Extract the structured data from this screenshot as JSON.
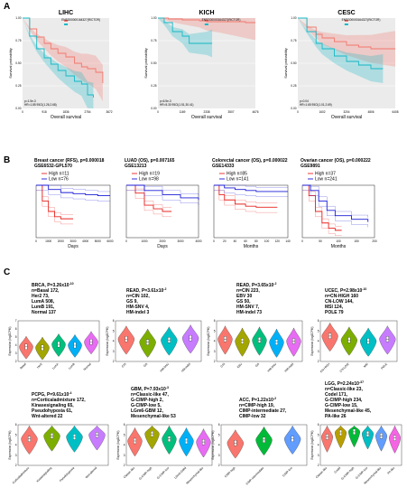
{
  "panels": [
    "A",
    "B",
    "C"
  ],
  "panel_a": [
    {
      "title": "LIHC",
      "xticks": [
        "0",
        "918",
        "1836",
        "2754",
        "3672"
      ],
      "xlabel": "Overall survival",
      "ylabel": "Survival probability",
      "legend_header": "ENSG00000164327(RICTOR)",
      "stats": [
        "p=1.5e-3",
        "HR=1.85 95CI(1.26,2.68)"
      ],
      "yticks": [
        "0.00",
        "0.25",
        "0.50",
        "0.75",
        "1.00"
      ]
    },
    {
      "title": "KICH",
      "xticks": [
        "0",
        "1169",
        "2338",
        "3507",
        "4676"
      ],
      "xlabel": "Overall survival",
      "ylabel": "Survival probability",
      "legend_header": "ENSG00000164327(RICTOR)",
      "stats": [
        "p=6.5e-3",
        "HR=5.30 95CI(1.51,30.41)"
      ],
      "yticks": [
        "0.00",
        "0.25",
        "0.50",
        "0.75",
        "1.00"
      ]
    },
    {
      "title": "CESC",
      "xticks": [
        "0",
        "1602",
        "3204",
        "4806",
        "6408"
      ],
      "xlabel": "Overall survival",
      "ylabel": "Survival probability",
      "legend_header": "ENSG00000164327(RICTOR)",
      "stats": [
        "p=0.04",
        "HR=1.65 95CI(1.01,2.69)"
      ],
      "yticks": [
        "0.00",
        "0.25",
        "0.50",
        "0.75",
        "1.00"
      ]
    }
  ],
  "panel_b": [
    {
      "title": "Breast cancer (RFS), p=0.000018",
      "dataset": "GSE6532-GPL570",
      "high": "High n=11",
      "low": "Low  n=76",
      "xlabel": "Days",
      "xticks": [
        "0",
        "1000",
        "2000",
        "3000",
        "4000",
        "5000",
        "6000"
      ]
    },
    {
      "title": "LUAD (OS), p=0.007165",
      "dataset": "GSE13213",
      "high": "High n=19",
      "low": "Low  n=98",
      "xlabel": "Days",
      "xticks": [
        "0",
        "1000",
        "2000",
        "3000",
        "4000"
      ]
    },
    {
      "title": "Colorectal cancer (OS), p=0.000022",
      "dataset": "GSE14333",
      "high": "High n=85",
      "low": "Low  n=141",
      "xlabel": "Months",
      "xticks": [
        "0",
        "20",
        "40",
        "60",
        "80",
        "100",
        "120",
        "140"
      ]
    },
    {
      "title": "Ovarian cancer (OS), p=0.000222",
      "dataset": "GSE9891",
      "high": "High n=37",
      "low": "Low  n=241",
      "xlabel": "Months",
      "xticks": [
        "0",
        "50",
        "100",
        "150",
        "200"
      ]
    }
  ],
  "panel_c": [
    {
      "title": "BRCA, P=3.26x10",
      "sup": "-10",
      "lines": [
        "n=Basal 172,",
        "Her2 73,",
        "LumA 508,",
        "LumB 191,",
        "Normal 137"
      ],
      "categories": [
        "Basal",
        "Her2",
        "LumA",
        "LumB",
        "Normal"
      ],
      "ylabel": "Expression (log2CPM)",
      "yticks": [
        "2",
        "3",
        "4",
        "5",
        "6",
        "7"
      ]
    },
    {
      "title": "READ, P=3.61x10",
      "sup": "-2",
      "lines": [
        "n=CIN 102,",
        "GS 9,",
        "HM-SNV 4,",
        "HM-indel 3"
      ],
      "categories": [
        "CIN",
        "GS",
        "HM-SNV",
        "HM-indel"
      ],
      "ylabel": "Expression (log2CPM)",
      "yticks": [
        "2",
        "3",
        "4",
        "5",
        "6"
      ]
    },
    {
      "title": "READ, P=3.65x10",
      "sup": "-2",
      "lines": [
        "n=CIN 223,",
        "EBV 30",
        "GS 50,",
        "HM-SNV 7,",
        "HM-indel 73"
      ],
      "categories": [
        "CIN",
        "EBV",
        "GS",
        "HM-SNV",
        "HM-indel"
      ],
      "ylabel": "Expression (log2CPM)",
      "yticks": [
        "2",
        "3",
        "4",
        "5",
        "6"
      ]
    },
    {
      "title": "UCEC, P=2.98x10",
      "sup": "-10",
      "lines": [
        "n=CN-HIGH 160",
        "CN-LOW 144,",
        "MSI 124,",
        "POLE 79"
      ],
      "categories": [
        "CN-HIGH",
        "CN-LOW",
        "MSI",
        "POLE"
      ],
      "ylabel": "Expression (log2CPM)",
      "yticks": [
        "2",
        "3",
        "4",
        "5",
        "6"
      ]
    },
    {
      "title": "PCPG, P=9.61x10",
      "sup": "-4",
      "lines": [
        "n=Corticaladmixture 172,",
        "Kinasesignaling 65,",
        "Pseudohypoxia 61,",
        "Wnt-altered 22"
      ],
      "categories": [
        "Corticaladmixture",
        "Kinasesignaling",
        "Pseudohypoxia",
        "Wnt-altered"
      ],
      "ylabel": "Expression (log2CPM)",
      "yticks": [
        "2",
        "3",
        "4",
        "5",
        "6"
      ]
    },
    {
      "title": "GBM, P=7.93x10",
      "sup": "-3",
      "lines": [
        "n=Classic-like 47,",
        "G-CIMP-high 2,",
        "G-CIMP-low 5,",
        "LGm6-GBM 12,",
        "Mesenchymal-like 53"
      ],
      "categories": [
        "Classic-like",
        "G-CIMP-high",
        "G-CIMP-low",
        "LGm6-GBM",
        "Mesenchymal-like"
      ],
      "ylabel": "Expression (log2CPM)",
      "yticks": [
        "2",
        "3",
        "4",
        "5",
        "6"
      ]
    },
    {
      "title": "ACC, P=1.22x10",
      "sup": "-2",
      "lines": [
        "n=CIMP-high 19,",
        "CIMP-intermediate 27,",
        "CIMP-low 32"
      ],
      "categories": [
        "CIMP-high",
        "CIMP-intermediate",
        "CIMP-low"
      ],
      "ylabel": "Expression (log2CPM)",
      "yticks": [
        "2",
        "3",
        "4",
        "5",
        "6"
      ]
    },
    {
      "title": "LGG, P=2.24x10",
      "sup": "-37",
      "lines": [
        "n=Classic-like 23,",
        "Codel 171,",
        "G-CIMP-high 234,",
        "G-CIMP-low 15,",
        "Mesenchymal-like 45,",
        "PA-like 26"
      ],
      "categories": [
        "Classic-like",
        "Codel",
        "G-CIMP-high",
        "G-CIMP-low",
        "Mesenchymal-like",
        "PA-like"
      ],
      "ylabel": "Expression (log2CPM)",
      "yticks": [
        "2",
        "3",
        "4",
        "5",
        "6"
      ]
    }
  ],
  "chart_data": [
    {
      "type": "line",
      "title": "LIHC",
      "xlabel": "Overall survival",
      "ylabel": "Survival probability",
      "xlim": [
        0,
        3672
      ],
      "ylim": [
        0,
        1
      ],
      "series": [
        {
          "color": "#f4776d",
          "x": [
            0,
            300,
            600,
            918,
            1200,
            1500,
            1836,
            2200,
            2500,
            2754,
            3100,
            3400
          ],
          "y": [
            1.0,
            0.88,
            0.79,
            0.72,
            0.66,
            0.61,
            0.57,
            0.5,
            0.46,
            0.44,
            0.4,
            0.28
          ]
        },
        {
          "color": "#16b8c6",
          "x": [
            0,
            300,
            600,
            918,
            1200,
            1500,
            1836,
            2200,
            2500,
            2754,
            3000
          ],
          "y": [
            1.0,
            0.8,
            0.66,
            0.56,
            0.49,
            0.42,
            0.36,
            0.3,
            0.27,
            0.15,
            0.12
          ]
        }
      ]
    },
    {
      "type": "line",
      "title": "KICH",
      "xlabel": "Overall survival",
      "ylabel": "Survival probability",
      "xlim": [
        0,
        4676
      ],
      "ylim": [
        0,
        1
      ],
      "series": [
        {
          "color": "#f4776d",
          "x": [
            0,
            500,
            1169,
            2000,
            2338,
            3000,
            3507,
            4200,
            4676
          ],
          "y": [
            1.0,
            0.99,
            0.98,
            0.97,
            0.96,
            0.96,
            0.96,
            0.95,
            0.95
          ]
        },
        {
          "color": "#16b8c6",
          "x": [
            0,
            300,
            700,
            1169,
            1500,
            2338,
            2600
          ],
          "y": [
            1.0,
            0.95,
            0.85,
            0.8,
            0.72,
            0.72,
            0.72
          ]
        }
      ]
    },
    {
      "type": "line",
      "title": "CESC",
      "xlabel": "Overall survival",
      "ylabel": "Survival probability",
      "xlim": [
        0,
        6408
      ],
      "ylim": [
        0,
        1
      ],
      "series": [
        {
          "color": "#f4776d",
          "x": [
            0,
            600,
            1200,
            1602,
            2400,
            3204,
            4000,
            4806,
            5600,
            6408
          ],
          "y": [
            1.0,
            0.9,
            0.82,
            0.78,
            0.74,
            0.7,
            0.68,
            0.66,
            0.66,
            0.66
          ]
        },
        {
          "color": "#16b8c6",
          "x": [
            0,
            600,
            1200,
            1602,
            2400,
            3204,
            4000,
            4806,
            5600
          ],
          "y": [
            1.0,
            0.85,
            0.72,
            0.66,
            0.58,
            0.52,
            0.48,
            0.44,
            0.44
          ]
        }
      ]
    },
    {
      "type": "line",
      "title": "Breast cancer (RFS), p=0.000018",
      "xlabel": "Days",
      "xlim": [
        0,
        6000
      ],
      "ylim": [
        0,
        1
      ],
      "series": [
        {
          "name": "High n=11",
          "color": "#e8231f",
          "x": [
            0,
            500,
            1000,
            1500,
            2000,
            3000
          ],
          "y": [
            1.0,
            0.7,
            0.5,
            0.4,
            0.36,
            0.36
          ]
        },
        {
          "name": "Low  n=76",
          "color": "#1b1bd8",
          "x": [
            0,
            1000,
            2000,
            3000,
            4000,
            5000,
            6000
          ],
          "y": [
            1.0,
            0.92,
            0.86,
            0.84,
            0.82,
            0.8,
            0.8
          ]
        }
      ]
    },
    {
      "type": "line",
      "title": "LUAD (OS), p=0.007165",
      "xlabel": "Days",
      "xlim": [
        0,
        4000
      ],
      "ylim": [
        0,
        1
      ],
      "series": [
        {
          "name": "High n=19",
          "color": "#e8231f",
          "x": [
            0,
            500,
            1000,
            1500,
            2000,
            2500
          ],
          "y": [
            1.0,
            0.85,
            0.62,
            0.55,
            0.5,
            0.5
          ]
        },
        {
          "name": "Low  n=98",
          "color": "#1b1bd8",
          "x": [
            0,
            1000,
            2000,
            3000,
            4000
          ],
          "y": [
            1.0,
            0.9,
            0.82,
            0.76,
            0.72
          ]
        }
      ]
    },
    {
      "type": "line",
      "title": "Colorectal cancer (OS), p=0.000022",
      "xlabel": "Months",
      "xlim": [
        0,
        140
      ],
      "ylim": [
        0,
        1
      ],
      "series": [
        {
          "name": "High n=85",
          "color": "#e8231f",
          "x": [
            0,
            10,
            20,
            40,
            60,
            80,
            100,
            120
          ],
          "y": [
            1.0,
            0.82,
            0.72,
            0.64,
            0.6,
            0.58,
            0.58,
            0.58
          ]
        },
        {
          "name": "Low  n=141",
          "color": "#1b1bd8",
          "x": [
            0,
            20,
            40,
            60,
            80,
            100,
            120,
            140
          ],
          "y": [
            1.0,
            0.95,
            0.92,
            0.9,
            0.88,
            0.88,
            0.88,
            0.88
          ]
        }
      ]
    },
    {
      "type": "line",
      "title": "Ovarian cancer (OS), p=0.000222",
      "xlabel": "Months",
      "xlim": [
        0,
        220
      ],
      "ylim": [
        0,
        1
      ],
      "series": [
        {
          "name": "High n=37",
          "color": "#e8231f",
          "x": [
            0,
            20,
            40,
            60,
            80,
            100,
            120
          ],
          "y": [
            1.0,
            0.8,
            0.5,
            0.28,
            0.18,
            0.14,
            0.14
          ]
        },
        {
          "name": "Low  n=241",
          "color": "#1b1bd8",
          "x": [
            0,
            25,
            50,
            75,
            100,
            150,
            200
          ],
          "y": [
            1.0,
            0.9,
            0.7,
            0.52,
            0.42,
            0.35,
            0.3
          ]
        }
      ]
    },
    {
      "type": "violin",
      "title": "BRCA",
      "categories": [
        "Basal",
        "Her2",
        "LumA",
        "LumB",
        "Normal"
      ],
      "medians": [
        3.8,
        3.7,
        4.1,
        4.0,
        4.4
      ],
      "colors": [
        "#f8766d",
        "#a3a500",
        "#00bf7d",
        "#00b0f6",
        "#e76bf3"
      ],
      "ylim": [
        2,
        7
      ]
    },
    {
      "type": "violin",
      "title": "READ",
      "categories": [
        "CIN",
        "GS",
        "HM-SNV",
        "HM-indel"
      ],
      "medians": [
        4.2,
        3.9,
        4.1,
        4.3
      ],
      "colors": [
        "#f8766d",
        "#7cae00",
        "#00bfc4",
        "#c77cff"
      ],
      "ylim": [
        2,
        6
      ]
    },
    {
      "type": "violin",
      "title": "READ",
      "categories": [
        "CIN",
        "EBV",
        "GS",
        "HM-SNV",
        "HM-indel"
      ],
      "medians": [
        4.2,
        4.0,
        4.1,
        3.9,
        4.0
      ],
      "colors": [
        "#f8766d",
        "#a3a500",
        "#00bf7d",
        "#00b0f6",
        "#e76bf3"
      ],
      "ylim": [
        2,
        6
      ]
    },
    {
      "type": "violin",
      "title": "UCEC",
      "categories": [
        "CN-HIGH",
        "CN-LOW",
        "MSI",
        "POLE"
      ],
      "medians": [
        4.5,
        4.1,
        4.0,
        4.2
      ],
      "colors": [
        "#f8766d",
        "#7cae00",
        "#00bfc4",
        "#c77cff"
      ],
      "ylim": [
        2,
        6
      ]
    },
    {
      "type": "violin",
      "title": "PCPG",
      "categories": [
        "Corticaladmixture",
        "Kinasesignaling",
        "Pseudohypoxia",
        "Wnt-altered"
      ],
      "medians": [
        4.6,
        4.9,
        4.8,
        5.0
      ],
      "colors": [
        "#f8766d",
        "#7cae00",
        "#00bfc4",
        "#c77cff"
      ],
      "ylim": [
        2,
        6
      ]
    },
    {
      "type": "violin",
      "title": "GBM",
      "categories": [
        "Classic-like",
        "G-CIMP-high",
        "G-CIMP-low",
        "LGm6-GBM",
        "Mesenchymal-like"
      ],
      "medians": [
        4.4,
        5.1,
        4.6,
        4.4,
        4.3
      ],
      "colors": [
        "#f8766d",
        "#a3a500",
        "#00bf7d",
        "#00b0f6",
        "#e76bf3"
      ],
      "ylim": [
        2,
        6
      ]
    },
    {
      "type": "violin",
      "title": "ACC",
      "categories": [
        "CIMP-high",
        "CIMP-intermediate",
        "CIMP-low"
      ],
      "medians": [
        4.2,
        4.5,
        4.6
      ],
      "colors": [
        "#f8766d",
        "#00ba38",
        "#619cff"
      ],
      "ylim": [
        2,
        6
      ]
    },
    {
      "type": "violin",
      "title": "LGG",
      "categories": [
        "Classic-like",
        "Codel",
        "G-CIMP-high",
        "G-CIMP-low",
        "Mesenchymal-like",
        "PA-like"
      ],
      "medians": [
        4.8,
        5.2,
        5.3,
        5.1,
        4.9,
        4.7
      ],
      "colors": [
        "#f8766d",
        "#b79f00",
        "#00ba38",
        "#00bfc4",
        "#619cff",
        "#f564e3"
      ],
      "ylim": [
        2,
        6
      ]
    }
  ]
}
